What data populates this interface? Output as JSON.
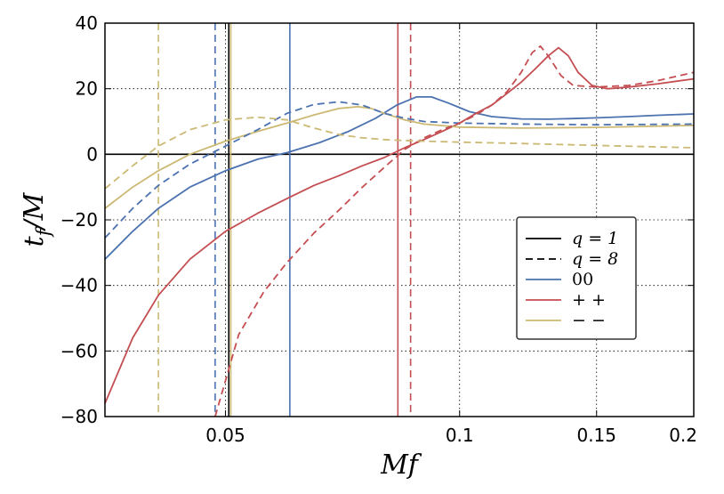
{
  "chart_data": {
    "type": "line",
    "title": "",
    "xlabel": "Mf",
    "ylabel": "t_f/M",
    "xscale": "log",
    "xlim": [
      0.035,
      0.2
    ],
    "ylim": [
      -80,
      40
    ],
    "xticks": [
      0.05,
      0.1,
      0.15,
      0.2
    ],
    "xtick_labels": [
      "0.05",
      "0.1",
      "0.15",
      "0.2"
    ],
    "yticks": [
      -80,
      -60,
      -40,
      -20,
      0,
      20,
      40
    ],
    "ytick_labels": [
      "−80",
      "−60",
      "−40",
      "−20",
      "0",
      "20",
      "40"
    ],
    "grid": true,
    "legend_position": "center-right",
    "colors": {
      "q1": "#000000",
      "q8": "#000000",
      "00": "#4c72b0",
      "++": "#c44e52",
      "--": "#ccb974"
    },
    "legend": [
      {
        "label": "q = 1",
        "color": "#000000",
        "dash": "solid"
      },
      {
        "label": "q = 8",
        "color": "#000000",
        "dash": "dashed"
      },
      {
        "label": "00",
        "color": "#4c72b0",
        "dash": "solid"
      },
      {
        "label": "+ +",
        "color": "#c44e52",
        "dash": "solid"
      },
      {
        "label": "− −",
        "color": "#ccb974",
        "dash": "solid"
      }
    ],
    "hlines": [
      {
        "y": 0,
        "color": "#000000"
      }
    ],
    "vlines": [
      {
        "x": 0.0505,
        "color": "#000000",
        "dash": "solid"
      },
      {
        "x": 0.0605,
        "color": "#4c72b0",
        "dash": "solid"
      },
      {
        "x": 0.0833,
        "color": "#c44e52",
        "dash": "solid"
      },
      {
        "x": 0.0508,
        "color": "#ccb974",
        "dash": "solid"
      },
      {
        "x": 0.0485,
        "color": "#4c72b0",
        "dash": "dashed"
      },
      {
        "x": 0.0865,
        "color": "#c44e52",
        "dash": "dashed"
      },
      {
        "x": 0.041,
        "color": "#ccb974",
        "dash": "dashed"
      }
    ],
    "series": [
      {
        "name": "00",
        "color": "#4c72b0",
        "dash": "solid",
        "x": [
          0.035,
          0.038,
          0.041,
          0.045,
          0.05,
          0.055,
          0.06,
          0.066,
          0.072,
          0.078,
          0.083,
          0.088,
          0.092,
          0.097,
          0.103,
          0.11,
          0.12,
          0.13,
          0.14,
          0.15,
          0.165,
          0.18,
          0.2
        ],
        "y": [
          -32,
          -23.5,
          -16.5,
          -10,
          -5,
          -1.5,
          0.5,
          3.5,
          7,
          11,
          15,
          17.5,
          17.5,
          15.5,
          13,
          11.5,
          10.8,
          10.7,
          10.9,
          11.1,
          11.5,
          11.9,
          12.3
        ]
      },
      {
        "name": "++",
        "color": "#c44e52",
        "dash": "solid",
        "x": [
          0.035,
          0.038,
          0.041,
          0.045,
          0.05,
          0.055,
          0.06,
          0.065,
          0.07,
          0.075,
          0.08,
          0.085,
          0.09,
          0.095,
          0.1,
          0.105,
          0.11,
          0.115,
          0.12,
          0.125,
          0.13,
          0.134,
          0.138,
          0.142,
          0.148,
          0.155,
          0.165,
          0.18,
          0.2
        ],
        "y": [
          -76,
          -56,
          -43,
          -32,
          -23.5,
          -18,
          -13.5,
          -9.5,
          -6.5,
          -3.5,
          -1,
          2,
          4.5,
          7,
          9.5,
          12.5,
          15,
          18.5,
          22,
          26,
          30,
          32.5,
          30,
          25,
          21,
          20,
          20.5,
          21.5,
          23
        ]
      },
      {
        "name": "--",
        "color": "#ccb974",
        "dash": "solid",
        "x": [
          0.035,
          0.038,
          0.041,
          0.045,
          0.05,
          0.055,
          0.06,
          0.065,
          0.07,
          0.074,
          0.077,
          0.08,
          0.085,
          0.09,
          0.1,
          0.12,
          0.15,
          0.2
        ],
        "y": [
          -16.5,
          -10,
          -5,
          0,
          4,
          7,
          9.5,
          12,
          14,
          14.5,
          14,
          12.5,
          10.5,
          9.2,
          8.3,
          8,
          8.2,
          8.8
        ]
      },
      {
        "name": "00 (q=8)",
        "color": "#4c72b0",
        "dash": "dashed",
        "x": [
          0.035,
          0.038,
          0.041,
          0.045,
          0.05,
          0.055,
          0.06,
          0.065,
          0.07,
          0.075,
          0.08,
          0.085,
          0.09,
          0.1,
          0.12,
          0.15,
          0.2
        ],
        "y": [
          -25.5,
          -16.5,
          -9.5,
          -3,
          2.5,
          7.5,
          12.5,
          15.2,
          16,
          15,
          12.5,
          11,
          10,
          9.5,
          9.2,
          9,
          9.2
        ]
      },
      {
        "name": "++ (q=8)",
        "color": "#c44e52",
        "dash": "dashed",
        "x": [
          0.0485,
          0.052,
          0.056,
          0.06,
          0.065,
          0.07,
          0.075,
          0.08,
          0.085,
          0.09,
          0.095,
          0.1,
          0.105,
          0.11,
          0.115,
          0.12,
          0.124,
          0.127,
          0.13,
          0.135,
          0.14,
          0.15,
          0.165,
          0.18,
          0.2
        ],
        "y": [
          -80,
          -55,
          -42,
          -33,
          -24,
          -17,
          -10,
          -4,
          1.5,
          5,
          7.5,
          9.5,
          12,
          15,
          19,
          25,
          31,
          33,
          30,
          24,
          21,
          20.5,
          21,
          22.5,
          25
        ]
      },
      {
        "name": "-- (q=8)",
        "color": "#ccb974",
        "dash": "dashed",
        "x": [
          0.035,
          0.038,
          0.041,
          0.045,
          0.05,
          0.055,
          0.06,
          0.065,
          0.07,
          0.075,
          0.08,
          0.085,
          0.09,
          0.1,
          0.12,
          0.15,
          0.2
        ],
        "y": [
          -10.5,
          -3.5,
          2.5,
          7.5,
          10.5,
          11.3,
          10.5,
          8,
          6,
          5,
          4.5,
          4.2,
          4,
          3.7,
          3.3,
          2.7,
          2
        ]
      }
    ]
  }
}
